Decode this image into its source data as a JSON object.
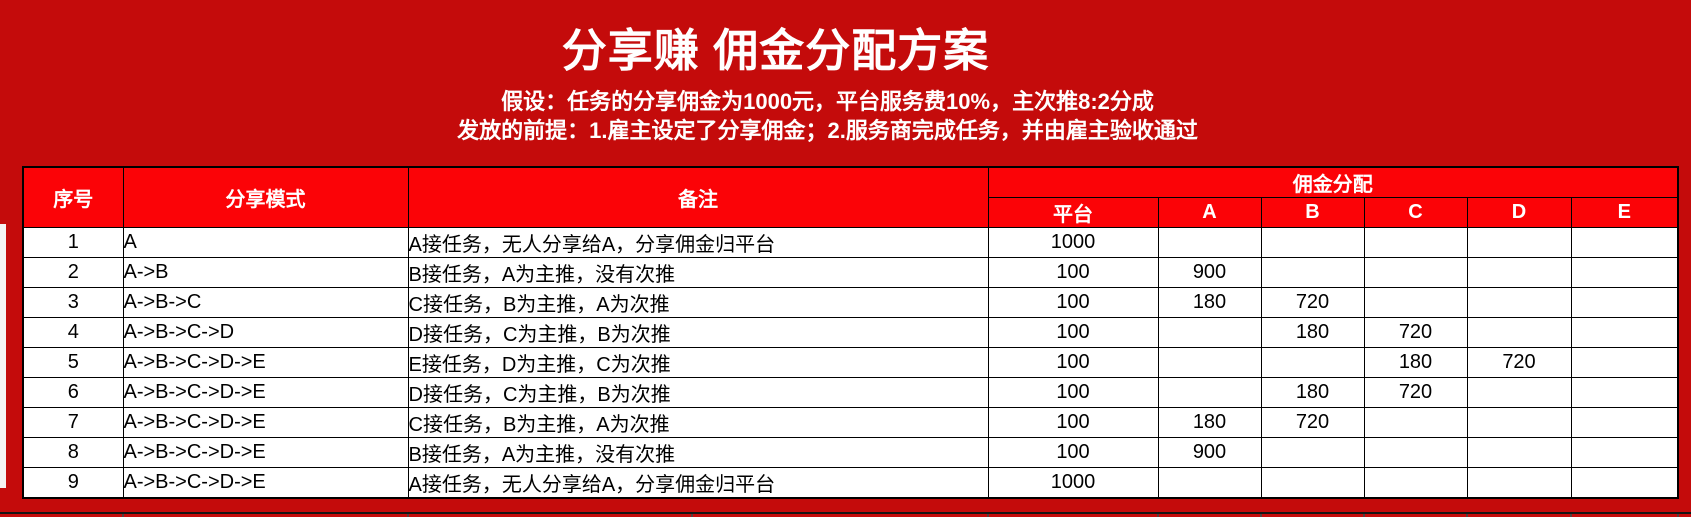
{
  "header": {
    "title": "分享赚 佣金分配方案",
    "assumption": "假设：任务的分享佣金为1000元，平台服务费10%，主次推8:2分成",
    "precondition": "发放的前提：1.雇主设定了分享佣金；2.服务商完成任务，并由雇主验收通过"
  },
  "table": {
    "headers": {
      "index": "序号",
      "mode": "分享模式",
      "note": "备注",
      "distribution": "佣金分配",
      "recipients": [
        "平台",
        "A",
        "B",
        "C",
        "D",
        "E"
      ]
    },
    "rows": [
      {
        "no": "1",
        "mode": "A",
        "note": "A接任务，无人分享给A，分享佣金归平台",
        "values": [
          "1000",
          "",
          "",
          "",
          "",
          ""
        ]
      },
      {
        "no": "2",
        "mode": "A->B",
        "note": "B接任务，A为主推，没有次推",
        "values": [
          "100",
          "900",
          "",
          "",
          "",
          ""
        ]
      },
      {
        "no": "3",
        "mode": "A->B->C",
        "note": "C接任务，B为主推，A为次推",
        "values": [
          "100",
          "180",
          "720",
          "",
          "",
          ""
        ]
      },
      {
        "no": "4",
        "mode": "A->B->C->D",
        "note": "D接任务，C为主推，B为次推",
        "values": [
          "100",
          "",
          "180",
          "720",
          "",
          ""
        ]
      },
      {
        "no": "5",
        "mode": "A->B->C->D->E",
        "note": "E接任务，D为主推，C为次推",
        "values": [
          "100",
          "",
          "",
          "180",
          "720",
          ""
        ]
      },
      {
        "no": "6",
        "mode": "A->B->C->D->E",
        "note": "D接任务，C为主推，B为次推",
        "values": [
          "100",
          "",
          "180",
          "720",
          "",
          ""
        ]
      },
      {
        "no": "7",
        "mode": "A->B->C->D->E",
        "note": "C接任务，B为主推，A为次推",
        "values": [
          "100",
          "180",
          "720",
          "",
          "",
          ""
        ]
      },
      {
        "no": "8",
        "mode": "A->B->C->D->E",
        "note": "B接任务，A为主推，没有次推",
        "values": [
          "100",
          "900",
          "",
          "",
          "",
          ""
        ]
      },
      {
        "no": "9",
        "mode": "A->B->C->D->E",
        "note": "A接任务，无人分享给A，分享佣金归平台",
        "values": [
          "1000",
          "",
          "",
          "",
          "",
          ""
        ]
      }
    ]
  },
  "colors": {
    "background_dark_red": "#C40B0B",
    "header_bright_red": "#FB0307",
    "cell_background": "#FFFFFF",
    "header_text": "#FFFFFF",
    "cell_text": "#000000",
    "grid_border": "#000000"
  }
}
